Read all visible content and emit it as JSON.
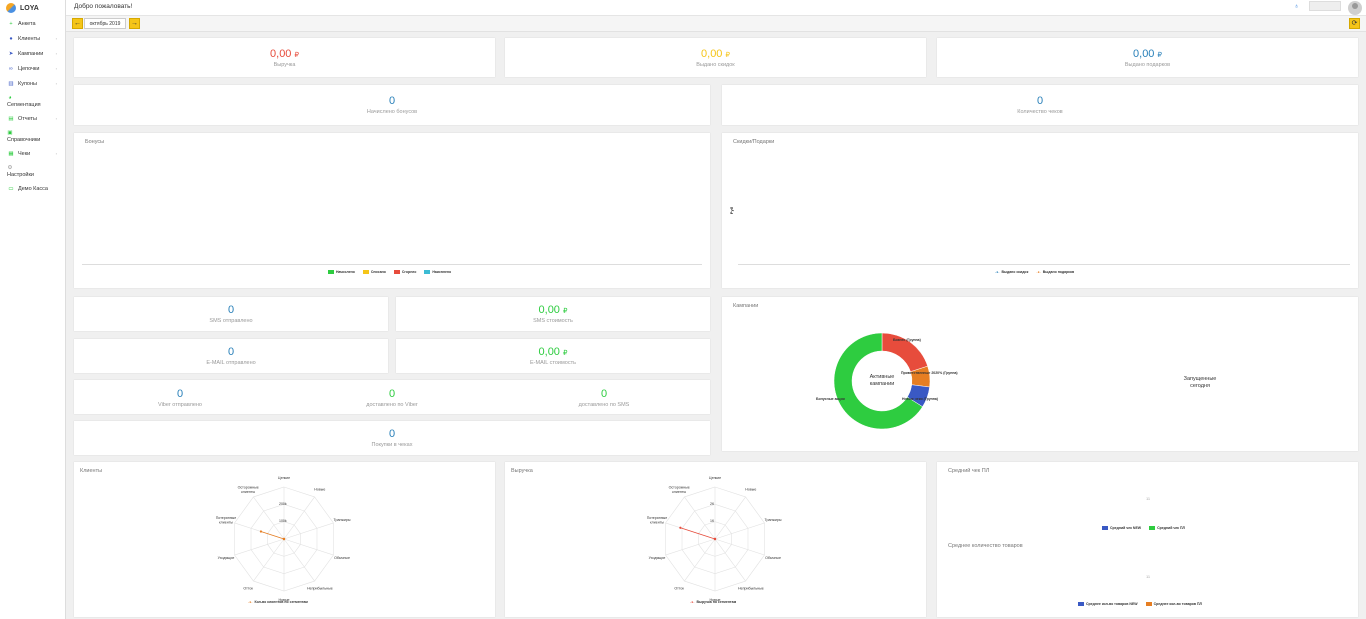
{
  "app": {
    "name": "LOYA"
  },
  "sidebar": {
    "items": [
      {
        "label": "Анкета",
        "icon": "plus-icon"
      },
      {
        "label": "Клиенты",
        "icon": "user-icon"
      },
      {
        "label": "Кампании",
        "icon": "rocket-icon"
      },
      {
        "label": "Цепочки",
        "icon": "chain-icon"
      },
      {
        "label": "Купоны",
        "icon": "barcode-icon"
      },
      {
        "label": "Сегментация",
        "icon": "pie-icon"
      },
      {
        "label": "Отчеты",
        "icon": "chart-icon"
      },
      {
        "label": "Справочники",
        "icon": "book-icon"
      },
      {
        "label": "Чеки",
        "icon": "receipt-icon"
      },
      {
        "label": "Настройки",
        "icon": "gear-icon"
      },
      {
        "label": "Демо Касса",
        "icon": "laptop-icon"
      }
    ]
  },
  "header": {
    "welcome": "Добро пожаловать!"
  },
  "toolbar": {
    "month": "октябрь 2019",
    "prev": "←",
    "next": "→",
    "refresh": "⟳"
  },
  "stats": {
    "revenue": {
      "value": "0,00",
      "currency": "₽",
      "label": "Выручка",
      "color": "#e74c3c"
    },
    "discounts": {
      "value": "0,00",
      "currency": "₽",
      "label": "Выдано скидок",
      "color": "#f5c518"
    },
    "gifts": {
      "value": "0,00",
      "currency": "₽",
      "label": "Выдано подарков",
      "color": "#2980b9"
    },
    "bonuses_accrued": {
      "value": "0",
      "label": "Начислено бонусов"
    },
    "checks_count": {
      "value": "0",
      "label": "Количество чеков"
    },
    "sms_sent": {
      "value": "0",
      "label": "SMS отправлено"
    },
    "sms_cost": {
      "value": "0,00",
      "currency": "₽",
      "label": "SMS стоимость"
    },
    "email_sent": {
      "value": "0",
      "label": "E-MAIL отправлено"
    },
    "email_cost": {
      "value": "0,00",
      "currency": "₽",
      "label": "E-MAIL стоимость"
    },
    "viber_sent": {
      "value": "0",
      "label": "Viber отправлено"
    },
    "viber_delivered": {
      "value": "0",
      "label": "доставлено по Viber"
    },
    "sms_delivered": {
      "value": "0",
      "label": "доставлено по SMS"
    },
    "check_purchases": {
      "value": "0",
      "label": "Покупки в чеках"
    }
  },
  "bonus_chart": {
    "title": "Бонусы",
    "legend": [
      {
        "name": "Начислено",
        "color": "#2ecc40"
      },
      {
        "name": "Списано",
        "color": "#f5c518"
      },
      {
        "name": "Сгорело",
        "color": "#e74c3c"
      },
      {
        "name": "Накоплено",
        "color": "#3cbcd4"
      }
    ]
  },
  "discount_chart": {
    "title": "Скидки/Подарки",
    "ylabel": "Руб",
    "legend": [
      {
        "name": "Выдано скидок",
        "color": "#2980b9"
      },
      {
        "name": "Выдано подарков",
        "color": "#e67e22"
      }
    ]
  },
  "campaign_chart": {
    "title": "Кампании",
    "center_label": [
      "Активные",
      "кампании"
    ],
    "launched_label": [
      "Запущенные",
      "сегодня"
    ],
    "chart_data": {
      "type": "pie",
      "slices": [
        {
          "name": "Бизнес (Группа)",
          "value": 20,
          "color": "#e74c3c"
        },
        {
          "name": "Приветственные 2020% (Группа)",
          "value": 7,
          "color": "#e67e22"
        },
        {
          "name": "Новые чеки (Группа)",
          "value": 7,
          "color": "#3a59c4"
        },
        {
          "name": "Бонусные акции",
          "value": 66,
          "color": "#2ecc40"
        }
      ]
    }
  },
  "clients_chart": {
    "title": "Клиенты",
    "legend": "Кол-во клиентов по сегментам",
    "ticks": [
      "100k",
      "200k"
    ],
    "axes": [
      "Цепкие",
      "Новые",
      "Транжиры",
      "Обычные",
      "Неприбыльные",
      "Новые",
      "Отток",
      "Уходящие",
      "Потерянные клиенты",
      "Осторожные клиенты"
    ],
    "chart_data": {
      "type": "radar",
      "categories": [
        "Цепкие",
        "Новые",
        "Транжиры",
        "Обычные",
        "Неприбыльные",
        "Новые",
        "Отток",
        "Уходящие",
        "Потерянные клиенты",
        "Осторожные клиенты"
      ],
      "values": [
        0,
        0,
        0,
        0,
        0,
        0,
        0,
        0,
        140,
        0
      ],
      "rmax": 300
    }
  },
  "revenue_chart": {
    "title": "Выручка",
    "legend": "Выручка по сегментам",
    "ticks": [
      "1К",
      "2К"
    ],
    "axes": [
      "Цепкие",
      "Новые",
      "Транжиры",
      "Обычные",
      "Неприбыльные",
      "Новые",
      "Отток",
      "Уходящие",
      "Потерянные клиенты",
      "Осторожные клиенты"
    ],
    "chart_data": {
      "type": "radar",
      "categories": [
        "Цепкие",
        "Новые",
        "Транжиры",
        "Обычные",
        "Неприбыльные",
        "Новые",
        "Отток",
        "Уходящие",
        "Потерянные клиенты",
        "Осторожные клиенты"
      ],
      "values": [
        0,
        0,
        0,
        0,
        0,
        0,
        0,
        0,
        2100,
        0
      ],
      "rmax": 3000
    }
  },
  "avg_check": {
    "title": "Средний чек ПЛ",
    "value": "11",
    "legend": [
      {
        "name": "Средний чек NEW",
        "color": "#3a59c4"
      },
      {
        "name": "Средний чек ПЛ",
        "color": "#2ecc40"
      }
    ]
  },
  "avg_items": {
    "title": "Среднее количество товаров",
    "value": "11",
    "legend": [
      {
        "name": "Среднее кол-во товаров NEW",
        "color": "#3a59c4"
      },
      {
        "name": "Среднее кол-во товаров ПЛ",
        "color": "#e67e22"
      }
    ]
  }
}
